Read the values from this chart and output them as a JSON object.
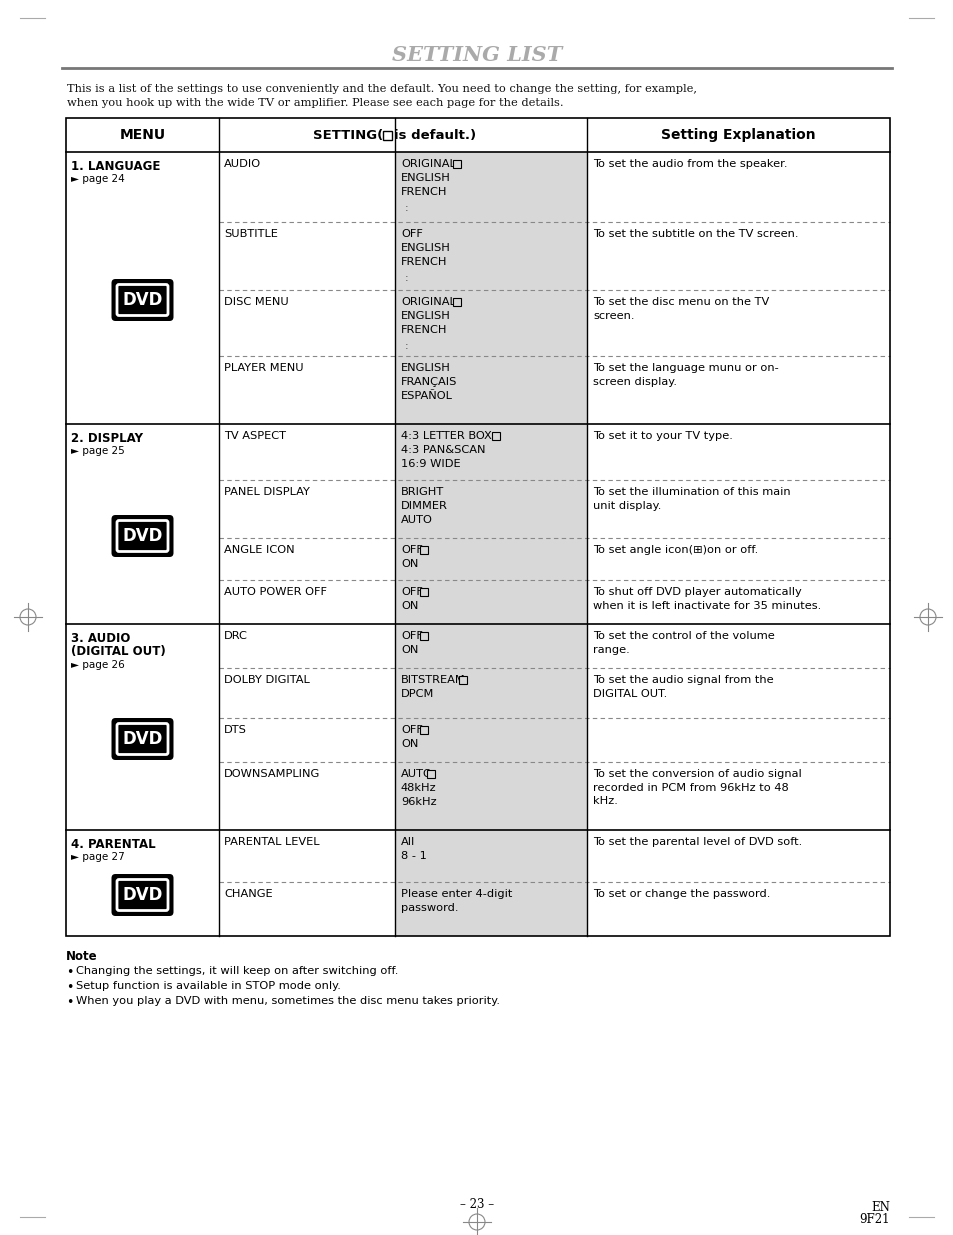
{
  "title": "SETTING LIST",
  "intro_line1": "This is a list of the settings to use conveniently and the default. You need to change the setting, for example,",
  "intro_line2": "when you hook up with the wide TV or amplifier. Please see each page for the details.",
  "bg_color": "#ffffff",
  "sections": [
    {
      "menu_label": "1. LANGUAGE",
      "menu_page": "page 24",
      "rows": [
        {
          "setting_name": "AUDIO",
          "options": [
            "ORIGINAL",
            "ENGLISH",
            "FRENCH",
            ":"
          ],
          "default_idx": 0,
          "explanation": "To set the audio from the speaker."
        },
        {
          "setting_name": "SUBTITLE",
          "options": [
            "OFF",
            "ENGLISH",
            "FRENCH",
            ":"
          ],
          "default_idx": -1,
          "explanation": "To set the subtitle on the TV screen."
        },
        {
          "setting_name": "DISC MENU",
          "options": [
            "ORIGINAL",
            "ENGLISH",
            "FRENCH",
            ":"
          ],
          "default_idx": 0,
          "explanation": "To set the disc menu on the TV\nscreen."
        },
        {
          "setting_name": "PLAYER MENU",
          "options": [
            "ENGLISH",
            "FRANÇAIS",
            "ESPAÑOL"
          ],
          "default_idx": -1,
          "explanation": "To set the language munu or on-\nscreen display."
        }
      ]
    },
    {
      "menu_label": "2. DISPLAY",
      "menu_page": "page 25",
      "rows": [
        {
          "setting_name": "TV ASPECT",
          "options": [
            "4:3 LETTER BOX",
            "4:3 PAN&SCAN",
            "16:9 WIDE"
          ],
          "default_idx": 0,
          "explanation": "To set it to your TV type."
        },
        {
          "setting_name": "PANEL DISPLAY",
          "options": [
            "BRIGHT",
            "DIMMER",
            "AUTO"
          ],
          "default_idx": -1,
          "explanation": "To set the illumination of this main\nunit display."
        },
        {
          "setting_name": "ANGLE ICON",
          "options": [
            "OFF",
            "ON"
          ],
          "default_idx": 0,
          "explanation": "To set angle icon(⊞)on or off."
        },
        {
          "setting_name": "AUTO POWER OFF",
          "options": [
            "OFF",
            "ON"
          ],
          "default_idx": 0,
          "explanation": "To shut off DVD player automatically\nwhen it is left inactivate for 35 minutes."
        }
      ]
    },
    {
      "menu_label": "3. AUDIO\n(DIGITAL OUT)",
      "menu_page": "page 26",
      "rows": [
        {
          "setting_name": "DRC",
          "options": [
            "OFF",
            "ON"
          ],
          "default_idx": 0,
          "explanation": "To set the control of the volume\nrange."
        },
        {
          "setting_name": "DOLBY DIGITAL",
          "options": [
            "BITSTREAM",
            "DPCM"
          ],
          "default_idx": 0,
          "explanation": "To set the audio signal from the\nDIGITAL OUT."
        },
        {
          "setting_name": "DTS",
          "options": [
            "OFF",
            "ON"
          ],
          "default_idx": 0,
          "explanation": ""
        },
        {
          "setting_name": "DOWNSAMPLING",
          "options": [
            "AUTO",
            "48kHz",
            "96kHz"
          ],
          "default_idx": 0,
          "explanation": "To set the conversion of audio signal\nrecorded in PCM from 96kHz to 48\nkHz."
        }
      ]
    },
    {
      "menu_label": "4. PARENTAL",
      "menu_page": "page 27",
      "rows": [
        {
          "setting_name": "PARENTAL LEVEL",
          "options": [
            "All",
            "8 - 1"
          ],
          "default_idx": -1,
          "explanation": "To set the parental level of DVD soft."
        },
        {
          "setting_name": "CHANGE",
          "options": [
            "Please enter 4-digit\npassword."
          ],
          "default_idx": -1,
          "explanation": "To set or change the password."
        }
      ]
    }
  ],
  "note_title": "Note",
  "notes": [
    "Changing the settings, it will keep on after switching off.",
    "Setup function is available in STOP mode only.",
    "When you play a DVD with menu, sometimes the disc menu takes priority."
  ],
  "footer_center": "– 23 –",
  "footer_right_line1": "EN",
  "footer_right_line2": "9F21"
}
